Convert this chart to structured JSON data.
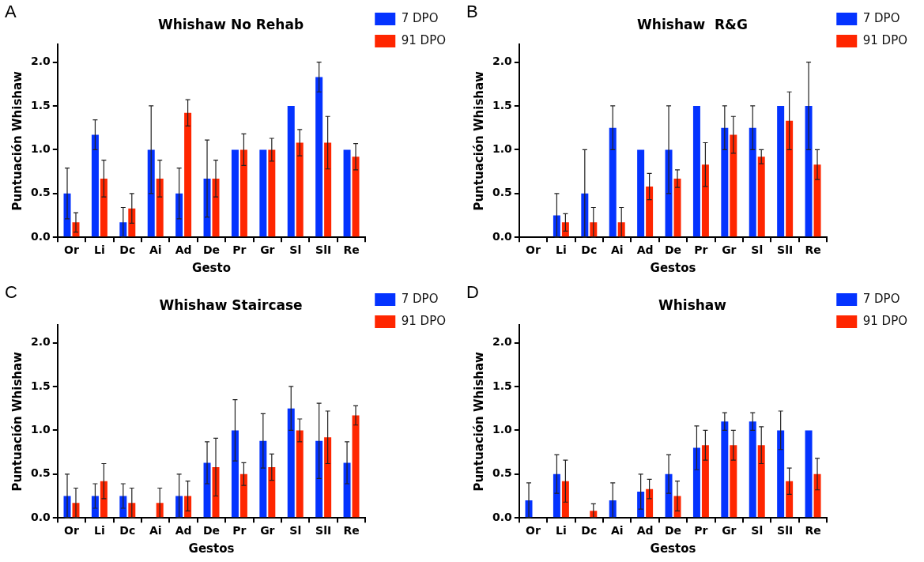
{
  "chart_data": [
    {
      "type": "bar",
      "title": "Whishaw No Rehab",
      "xlabel": "Gesto",
      "ylabel": "Puntuación Whishaw",
      "annotations": [
        "A"
      ],
      "categories": [
        "Or",
        "Li",
        "Dc",
        "Ai",
        "Ad",
        "De",
        "Pr",
        "Gr",
        "Sl",
        "SlI",
        "Re"
      ],
      "ylim": [
        0,
        2.2
      ],
      "yticks": [
        {
          "value": 0,
          "label": "0.0"
        },
        {
          "value": 0.5,
          "label": "0.5"
        },
        {
          "value": 1,
          "label": "1.0"
        },
        {
          "value": 1.5,
          "label": "1.5"
        },
        {
          "value": 2,
          "label": "2.0"
        }
      ],
      "grid": false,
      "legend": "top right",
      "series": [
        {
          "name": "7 DPO",
          "color": "#0433ff",
          "values": [
            0.5,
            1.17,
            0.17,
            1,
            0.5,
            0.67,
            1,
            1,
            1.5,
            1.83,
            1
          ],
          "errors": [
            0.29,
            0.17,
            0.17,
            0.5,
            0.29,
            0.44,
            null,
            null,
            null,
            0.17,
            null
          ]
        },
        {
          "name": "91 DPO",
          "color": "#ff2600",
          "values": [
            0.17,
            0.67,
            0.33,
            0.67,
            1.42,
            0.67,
            1,
            1,
            1.08,
            1.08,
            0.92
          ],
          "errors": [
            0.11,
            0.21,
            0.17,
            0.21,
            0.15,
            0.21,
            0.18,
            0.13,
            0.15,
            0.3,
            0.15
          ]
        }
      ]
    },
    {
      "type": "bar",
      "title": "Whishaw  R&G",
      "xlabel": "Gestos",
      "ylabel": "Puntuación Whishaw",
      "annotations": [
        "B"
      ],
      "categories": [
        "Or",
        "Li",
        "Dc",
        "Ai",
        "Ad",
        "De",
        "Pr",
        "Gr",
        "Sl",
        "SlI",
        "Re"
      ],
      "ylim": [
        0,
        2.2
      ],
      "yticks": [
        {
          "value": 0,
          "label": "0.0"
        },
        {
          "value": 0.5,
          "label": "0.5"
        },
        {
          "value": 1,
          "label": "1.0"
        },
        {
          "value": 1.5,
          "label": "1.5"
        },
        {
          "value": 2,
          "label": "2.0"
        }
      ],
      "grid": false,
      "legend": "top right",
      "series": [
        {
          "name": "7 DPO",
          "color": "#0433ff",
          "values": [
            0,
            0.25,
            0.5,
            1.25,
            1,
            1,
            1.5,
            1.25,
            1.25,
            1.5,
            1.5
          ],
          "errors": [
            null,
            0.25,
            0.5,
            0.25,
            null,
            0.5,
            null,
            0.25,
            0.25,
            null,
            0.5
          ]
        },
        {
          "name": "91 DPO",
          "color": "#ff2600",
          "values": [
            0,
            0.17,
            0.17,
            0.17,
            0.58,
            0.67,
            0.83,
            1.17,
            0.92,
            1.33,
            0.83
          ],
          "errors": [
            null,
            0.1,
            0.17,
            0.17,
            0.15,
            0.1,
            0.25,
            0.21,
            0.08,
            0.33,
            0.17
          ]
        }
      ]
    },
    {
      "type": "bar",
      "title": "Whishaw Staircase",
      "xlabel": "Gestos",
      "ylabel": "Puntuación Whishaw",
      "annotations": [
        "C"
      ],
      "categories": [
        "Or",
        "Li",
        "Dc",
        "Ai",
        "Ad",
        "De",
        "Pr",
        "Gr",
        "Sl",
        "SlI",
        "Re"
      ],
      "ylim": [
        0,
        2.2
      ],
      "yticks": [
        {
          "value": 0,
          "label": "0.0"
        },
        {
          "value": 0.5,
          "label": "0.5"
        },
        {
          "value": 1,
          "label": "1.0"
        },
        {
          "value": 1.5,
          "label": "1.5"
        },
        {
          "value": 2,
          "label": "2.0"
        }
      ],
      "grid": false,
      "legend": "top right",
      "series": [
        {
          "name": "7 DPO",
          "color": "#0433ff",
          "values": [
            0.25,
            0.25,
            0.25,
            0,
            0.25,
            0.63,
            1,
            0.88,
            1.25,
            0.88,
            0.63
          ],
          "errors": [
            0.25,
            0.14,
            0.14,
            null,
            0.25,
            0.24,
            0.35,
            0.31,
            0.25,
            0.43,
            0.24
          ]
        },
        {
          "name": "91 DPO",
          "color": "#ff2600",
          "values": [
            0.17,
            0.42,
            0.17,
            0.17,
            0.25,
            0.58,
            0.5,
            0.58,
            1,
            0.92,
            1.17
          ],
          "errors": [
            0.17,
            0.2,
            0.17,
            0.17,
            0.17,
            0.33,
            0.13,
            0.15,
            0.13,
            0.3,
            0.11
          ]
        }
      ]
    },
    {
      "type": "bar",
      "title": "Whishaw",
      "xlabel": "Gestos",
      "ylabel": "Puntuación Whishaw",
      "annotations": [
        "D"
      ],
      "categories": [
        "Or",
        "Li",
        "Dc",
        "Ai",
        "Ad",
        "De",
        "Pr",
        "Gr",
        "Sl",
        "SlI",
        "Re"
      ],
      "ylim": [
        0,
        2.2
      ],
      "yticks": [
        {
          "value": 0,
          "label": "0.0"
        },
        {
          "value": 0.5,
          "label": "0.5"
        },
        {
          "value": 1,
          "label": "1.0"
        },
        {
          "value": 1.5,
          "label": "1.5"
        },
        {
          "value": 2,
          "label": "2.0"
        }
      ],
      "grid": false,
      "legend": "top right",
      "series": [
        {
          "name": "7 DPO",
          "color": "#0433ff",
          "values": [
            0.2,
            0.5,
            0,
            0.2,
            0.3,
            0.5,
            0.8,
            1.1,
            1.1,
            1,
            1
          ],
          "errors": [
            0.2,
            0.22,
            null,
            0.2,
            0.2,
            0.22,
            0.25,
            0.1,
            0.1,
            0.22,
            null
          ]
        },
        {
          "name": "91 DPO",
          "color": "#ff2600",
          "values": [
            0,
            0.42,
            0.08,
            0,
            0.33,
            0.25,
            0.83,
            0.83,
            0.83,
            0.42,
            0.5
          ],
          "errors": [
            null,
            0.24,
            0.08,
            null,
            0.11,
            0.17,
            0.17,
            0.17,
            0.21,
            0.15,
            0.18
          ]
        }
      ]
    }
  ]
}
